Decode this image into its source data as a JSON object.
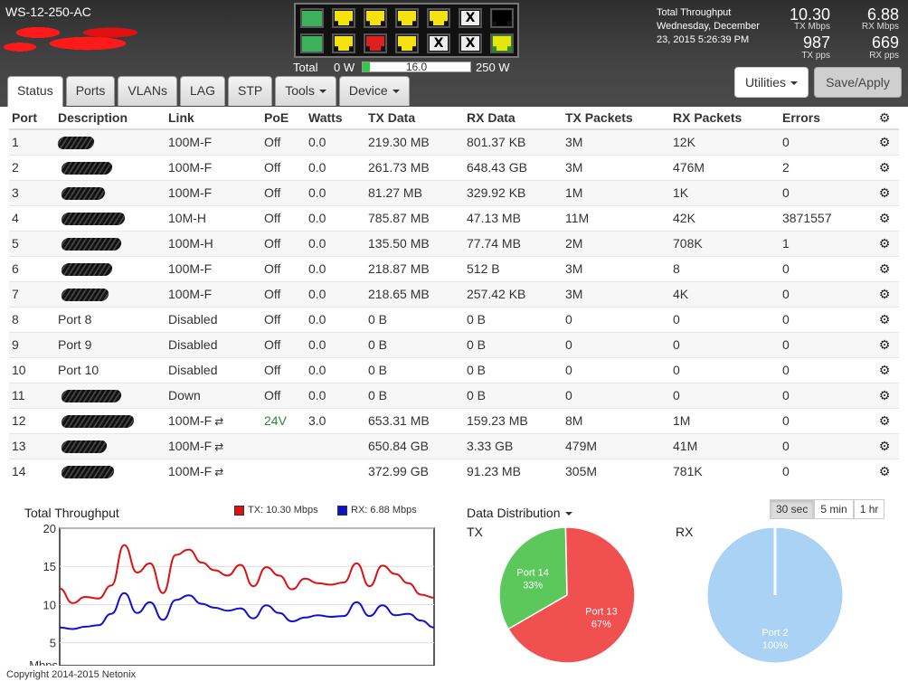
{
  "header": {
    "device_name": "WS-12-250-AC",
    "power": {
      "label": "Total",
      "min": "0 W",
      "value": "16.0",
      "max": "250 W",
      "fraction": 0.064
    },
    "throughput": {
      "title": "Total Throughput",
      "date": "Wednesday, December 23, 2015 5:26:39 PM",
      "tx_mbps": "10.30",
      "tx_mbps_label": "TX Mbps",
      "rx_mbps": "6.88",
      "rx_mbps_label": "RX Mbps",
      "tx_pps": "987",
      "tx_pps_label": "TX pps",
      "rx_pps": "669",
      "rx_pps_label": "RX pps"
    },
    "port_leds": [
      {
        "state": "green"
      },
      {
        "state": "yellow"
      },
      {
        "state": "yellow"
      },
      {
        "state": "yellow"
      },
      {
        "state": "yellow"
      },
      {
        "state": "disabled"
      },
      {
        "state": "black"
      },
      {
        "state": "green"
      },
      {
        "state": "yellow"
      },
      {
        "state": "red"
      },
      {
        "state": "yellow"
      },
      {
        "state": "disabled"
      },
      {
        "state": "disabled"
      },
      {
        "state": "yellow-green"
      }
    ],
    "disabled_glyph": "X"
  },
  "tabs": [
    {
      "label": "Status",
      "active": true,
      "dropdown": false
    },
    {
      "label": "Ports",
      "active": false,
      "dropdown": false
    },
    {
      "label": "VLANs",
      "active": false,
      "dropdown": false
    },
    {
      "label": "LAG",
      "active": false,
      "dropdown": false
    },
    {
      "label": "STP",
      "active": false,
      "dropdown": false
    },
    {
      "label": "Tools",
      "active": false,
      "dropdown": true
    },
    {
      "label": "Device",
      "active": false,
      "dropdown": true
    }
  ],
  "buttons": {
    "utilities": "Utilities",
    "save": "Save/Apply"
  },
  "table": {
    "columns": [
      "Port",
      "Description",
      "Link",
      "PoE",
      "Watts",
      "TX Data",
      "RX Data",
      "TX Packets",
      "RX Packets",
      "Errors"
    ],
    "rows": [
      {
        "port": "1",
        "desc": "",
        "link": "100M-F",
        "lag": false,
        "poe": "Off",
        "watts": "0.0",
        "tx": "219.30 MB",
        "rx": "801.37 KB",
        "txp": "3M",
        "rxp": "12K",
        "err": "0"
      },
      {
        "port": "2",
        "desc": "",
        "link": "100M-F",
        "lag": false,
        "poe": "Off",
        "watts": "0.0",
        "tx": "261.73 MB",
        "rx": "648.43 GB",
        "txp": "3M",
        "rxp": "476M",
        "err": "2"
      },
      {
        "port": "3",
        "desc": "",
        "link": "100M-F",
        "lag": false,
        "poe": "Off",
        "watts": "0.0",
        "tx": "81.27 MB",
        "rx": "329.92 KB",
        "txp": "1M",
        "rxp": "1K",
        "err": "0"
      },
      {
        "port": "4",
        "desc": "",
        "link": "10M-H",
        "lag": false,
        "poe": "Off",
        "watts": "0.0",
        "tx": "785.87 MB",
        "rx": "47.13 MB",
        "txp": "11M",
        "rxp": "42K",
        "err": "3871557"
      },
      {
        "port": "5",
        "desc": "",
        "link": "100M-H",
        "lag": false,
        "poe": "Off",
        "watts": "0.0",
        "tx": "135.50 MB",
        "rx": "77.74 MB",
        "txp": "2M",
        "rxp": "708K",
        "err": "1"
      },
      {
        "port": "6",
        "desc": "",
        "link": "100M-F",
        "lag": false,
        "poe": "Off",
        "watts": "0.0",
        "tx": "218.87 MB",
        "rx": "512 B",
        "txp": "3M",
        "rxp": "8",
        "err": "0"
      },
      {
        "port": "7",
        "desc": "",
        "link": "100M-F",
        "lag": false,
        "poe": "Off",
        "watts": "0.0",
        "tx": "218.65 MB",
        "rx": "257.42 KB",
        "txp": "3M",
        "rxp": "4K",
        "err": "0"
      },
      {
        "port": "8",
        "desc": "Port 8",
        "link": "Disabled",
        "lag": false,
        "poe": "Off",
        "watts": "0.0",
        "tx": "0 B",
        "rx": "0 B",
        "txp": "0",
        "rxp": "0",
        "err": "0"
      },
      {
        "port": "9",
        "desc": "Port 9",
        "link": "Disabled",
        "lag": false,
        "poe": "Off",
        "watts": "0.0",
        "tx": "0 B",
        "rx": "0 B",
        "txp": "0",
        "rxp": "0",
        "err": "0"
      },
      {
        "port": "10",
        "desc": "Port 10",
        "link": "Disabled",
        "lag": false,
        "poe": "Off",
        "watts": "0.0",
        "tx": "0 B",
        "rx": "0 B",
        "txp": "0",
        "rxp": "0",
        "err": "0"
      },
      {
        "port": "11",
        "desc": "",
        "link": "Down",
        "lag": false,
        "poe": "Off",
        "watts": "0.0",
        "tx": "0 B",
        "rx": "0 B",
        "txp": "0",
        "rxp": "0",
        "err": "0"
      },
      {
        "port": "12",
        "desc": "",
        "link": "100M-F",
        "lag": true,
        "poe": "24V",
        "watts": "3.0",
        "tx": "653.31 MB",
        "rx": "159.23 MB",
        "txp": "8M",
        "rxp": "1M",
        "err": "0"
      },
      {
        "port": "13",
        "desc": "",
        "link": "100M-F",
        "lag": true,
        "poe": "",
        "watts": "",
        "tx": "650.84 GB",
        "rx": "3.33 GB",
        "txp": "479M",
        "rxp": "41M",
        "err": "0"
      },
      {
        "port": "14",
        "desc": "",
        "link": "100M-F",
        "lag": true,
        "poe": "",
        "watts": "",
        "tx": "372.99 GB",
        "rx": "91.23 MB",
        "txp": "305M",
        "rxp": "781K",
        "err": "0"
      }
    ]
  },
  "throughput_chart": {
    "title": "Total Throughput",
    "legend_tx": "TX: 10.30 Mbps",
    "legend_rx": "RX: 6.88 Mbps",
    "ylabel": "Mbps"
  },
  "distribution": {
    "title": "Data Distribution",
    "tx_label": "TX",
    "rx_label": "RX",
    "ranges": [
      {
        "label": "30 sec",
        "active": true
      },
      {
        "label": "5 min",
        "active": false
      },
      {
        "label": "1 hr",
        "active": false
      }
    ]
  },
  "chart_data": [
    {
      "type": "line",
      "title": "Total Throughput",
      "ylabel": "Mbps",
      "ylim": [
        2,
        20
      ],
      "yticks": [
        5,
        10,
        15,
        20
      ],
      "grid": true,
      "series": [
        {
          "name": "TX: 10.30 Mbps",
          "color": "#dd1111",
          "values": [
            12.1,
            10.2,
            11,
            10.8,
            12.5,
            17.8,
            14.2,
            15.4,
            11.5,
            16.5,
            17.2,
            15.5,
            14.5,
            13.8,
            15.2,
            12.4,
            14.9,
            13.8,
            12.0,
            13.4,
            12.8,
            12.6,
            12.9,
            15.4,
            12.4,
            15.1,
            14.0,
            12.8,
            11.3,
            10.9
          ]
        },
        {
          "name": "RX: 6.88 Mbps",
          "color": "#1111cc",
          "values": [
            7.0,
            6.8,
            7.1,
            7.3,
            8.8,
            11.5,
            8.9,
            10.3,
            8.0,
            10.6,
            11.2,
            10.1,
            9.6,
            9.2,
            9.5,
            8.2,
            9.9,
            8.9,
            7.8,
            8.3,
            8.6,
            8.4,
            8.5,
            10.3,
            8.5,
            9.9,
            8.6,
            8.8,
            7.9,
            7.0
          ]
        }
      ]
    },
    {
      "type": "pie",
      "title": "TX",
      "slices": [
        {
          "label": "Port 14",
          "value": 33,
          "display": "33%",
          "color": "#5cc85c"
        },
        {
          "label": "Port 13",
          "value": 67,
          "display": "67%",
          "color": "#f05050"
        }
      ]
    },
    {
      "type": "pie",
      "title": "RX",
      "slices": [
        {
          "label": "Port 2",
          "value": 100,
          "display": "100%",
          "color": "#a9d2f5"
        }
      ]
    }
  ],
  "footer": {
    "copyright": "Copyright 2014-2015 Netonix"
  }
}
